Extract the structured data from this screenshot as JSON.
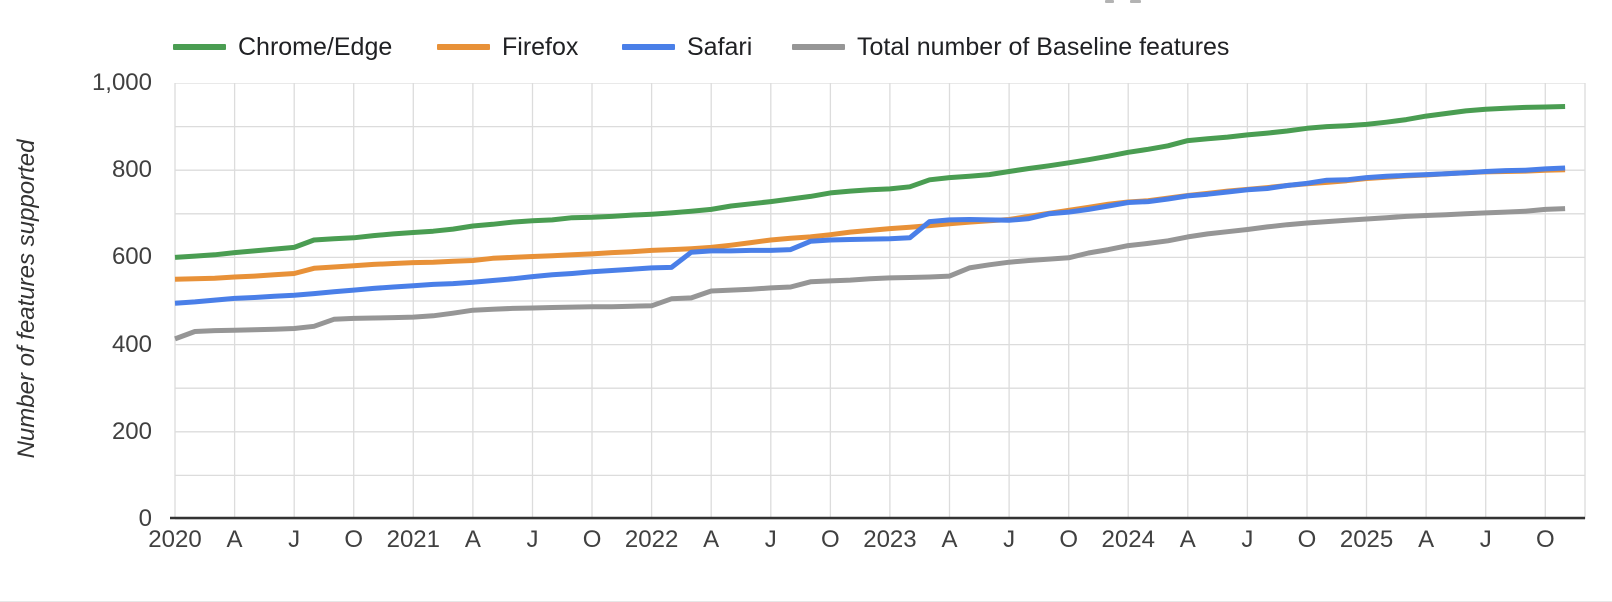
{
  "page": {
    "background": "#ffffff"
  },
  "legend": {
    "position": "top"
  },
  "axis": {
    "tick_color": "#404040",
    "axis_line_color": "#333333",
    "grid_color": "#dcdcdc"
  },
  "chart_data": {
    "type": "line",
    "title": "",
    "xlabel": "",
    "ylabel": "Number of features supported",
    "ylim": [
      0,
      1000
    ],
    "y_ticks": [
      0,
      200,
      400,
      600,
      800,
      1000
    ],
    "y_tick_labels": [
      "0",
      "200",
      "400",
      "600",
      "800",
      "1,000"
    ],
    "y_minor_grid_step": 100,
    "x_start": "2020-01",
    "x_end": "2025-11",
    "x_unit": "month",
    "x_tick_month_index": [
      0,
      3,
      6,
      9,
      12,
      15,
      18,
      21,
      24,
      27,
      30,
      33,
      36,
      39,
      42,
      45,
      48,
      51,
      54,
      57,
      60,
      63,
      66,
      69
    ],
    "x_tick_labels": [
      "2020",
      "A",
      "J",
      "O",
      "2021",
      "A",
      "J",
      "O",
      "2022",
      "A",
      "J",
      "O",
      "2023",
      "A",
      "J",
      "O",
      "2024",
      "A",
      "J",
      "O",
      "2025",
      "A",
      "J",
      "O"
    ],
    "grid": {
      "horizontal_every": 100,
      "vertical_every_months": 3
    },
    "legend_position": "top",
    "series": [
      {
        "name": "Chrome/Edge",
        "color": "#4a9d52",
        "values": [
          600,
          603,
          606,
          611,
          615,
          619,
          623,
          640,
          643,
          645,
          650,
          654,
          657,
          660,
          665,
          672,
          676,
          681,
          684,
          686,
          691,
          692,
          694,
          697,
          699,
          702,
          706,
          710,
          718,
          723,
          728,
          734,
          740,
          748,
          752,
          755,
          757,
          762,
          778,
          783,
          786,
          790,
          797,
          804,
          810,
          817,
          824,
          832,
          841,
          848,
          856,
          868,
          872,
          876,
          881,
          885,
          890,
          896,
          900,
          902,
          905,
          910,
          916,
          924,
          930,
          936,
          940,
          942,
          944,
          945,
          946
        ]
      },
      {
        "name": "Firefox",
        "color": "#e89138",
        "values": [
          550,
          551,
          552,
          555,
          557,
          560,
          563,
          575,
          578,
          581,
          584,
          586,
          588,
          589,
          591,
          593,
          598,
          600,
          602,
          604,
          606,
          608,
          611,
          613,
          616,
          618,
          620,
          623,
          628,
          634,
          640,
          644,
          647,
          652,
          658,
          662,
          666,
          669,
          673,
          677,
          681,
          684,
          687,
          694,
          701,
          708,
          715,
          722,
          727,
          730,
          736,
          742,
          747,
          752,
          756,
          760,
          765,
          769,
          772,
          776,
          781,
          784,
          787,
          789,
          792,
          794,
          796,
          797,
          798,
          800,
          801
        ]
      },
      {
        "name": "Safari",
        "color": "#4a7fe8",
        "values": [
          495,
          498,
          502,
          506,
          508,
          511,
          513,
          517,
          521,
          525,
          529,
          532,
          535,
          538,
          540,
          543,
          547,
          551,
          556,
          560,
          563,
          567,
          570,
          573,
          576,
          577,
          612,
          615,
          615,
          616,
          616,
          618,
          637,
          640,
          641,
          642,
          643,
          645,
          682,
          686,
          687,
          686,
          685,
          689,
          700,
          704,
          710,
          718,
          726,
          728,
          734,
          741,
          745,
          750,
          755,
          758,
          765,
          770,
          777,
          778,
          783,
          786,
          788,
          790,
          792,
          794,
          797,
          799,
          800,
          803,
          805
        ]
      },
      {
        "name": "Total number of Baseline features",
        "color": "#969696",
        "values": [
          413,
          430,
          432,
          433,
          434,
          435,
          437,
          442,
          458,
          460,
          461,
          462,
          463,
          466,
          472,
          479,
          481,
          483,
          484,
          485,
          486,
          487,
          487,
          488,
          489,
          505,
          507,
          523,
          525,
          527,
          530,
          532,
          544,
          546,
          548,
          551,
          553,
          554,
          555,
          557,
          576,
          583,
          589,
          593,
          596,
          599,
          610,
          618,
          627,
          632,
          638,
          647,
          654,
          659,
          664,
          670,
          675,
          679,
          682,
          685,
          688,
          691,
          694,
          696,
          698,
          700,
          702,
          704,
          706,
          710,
          712
        ]
      }
    ]
  }
}
